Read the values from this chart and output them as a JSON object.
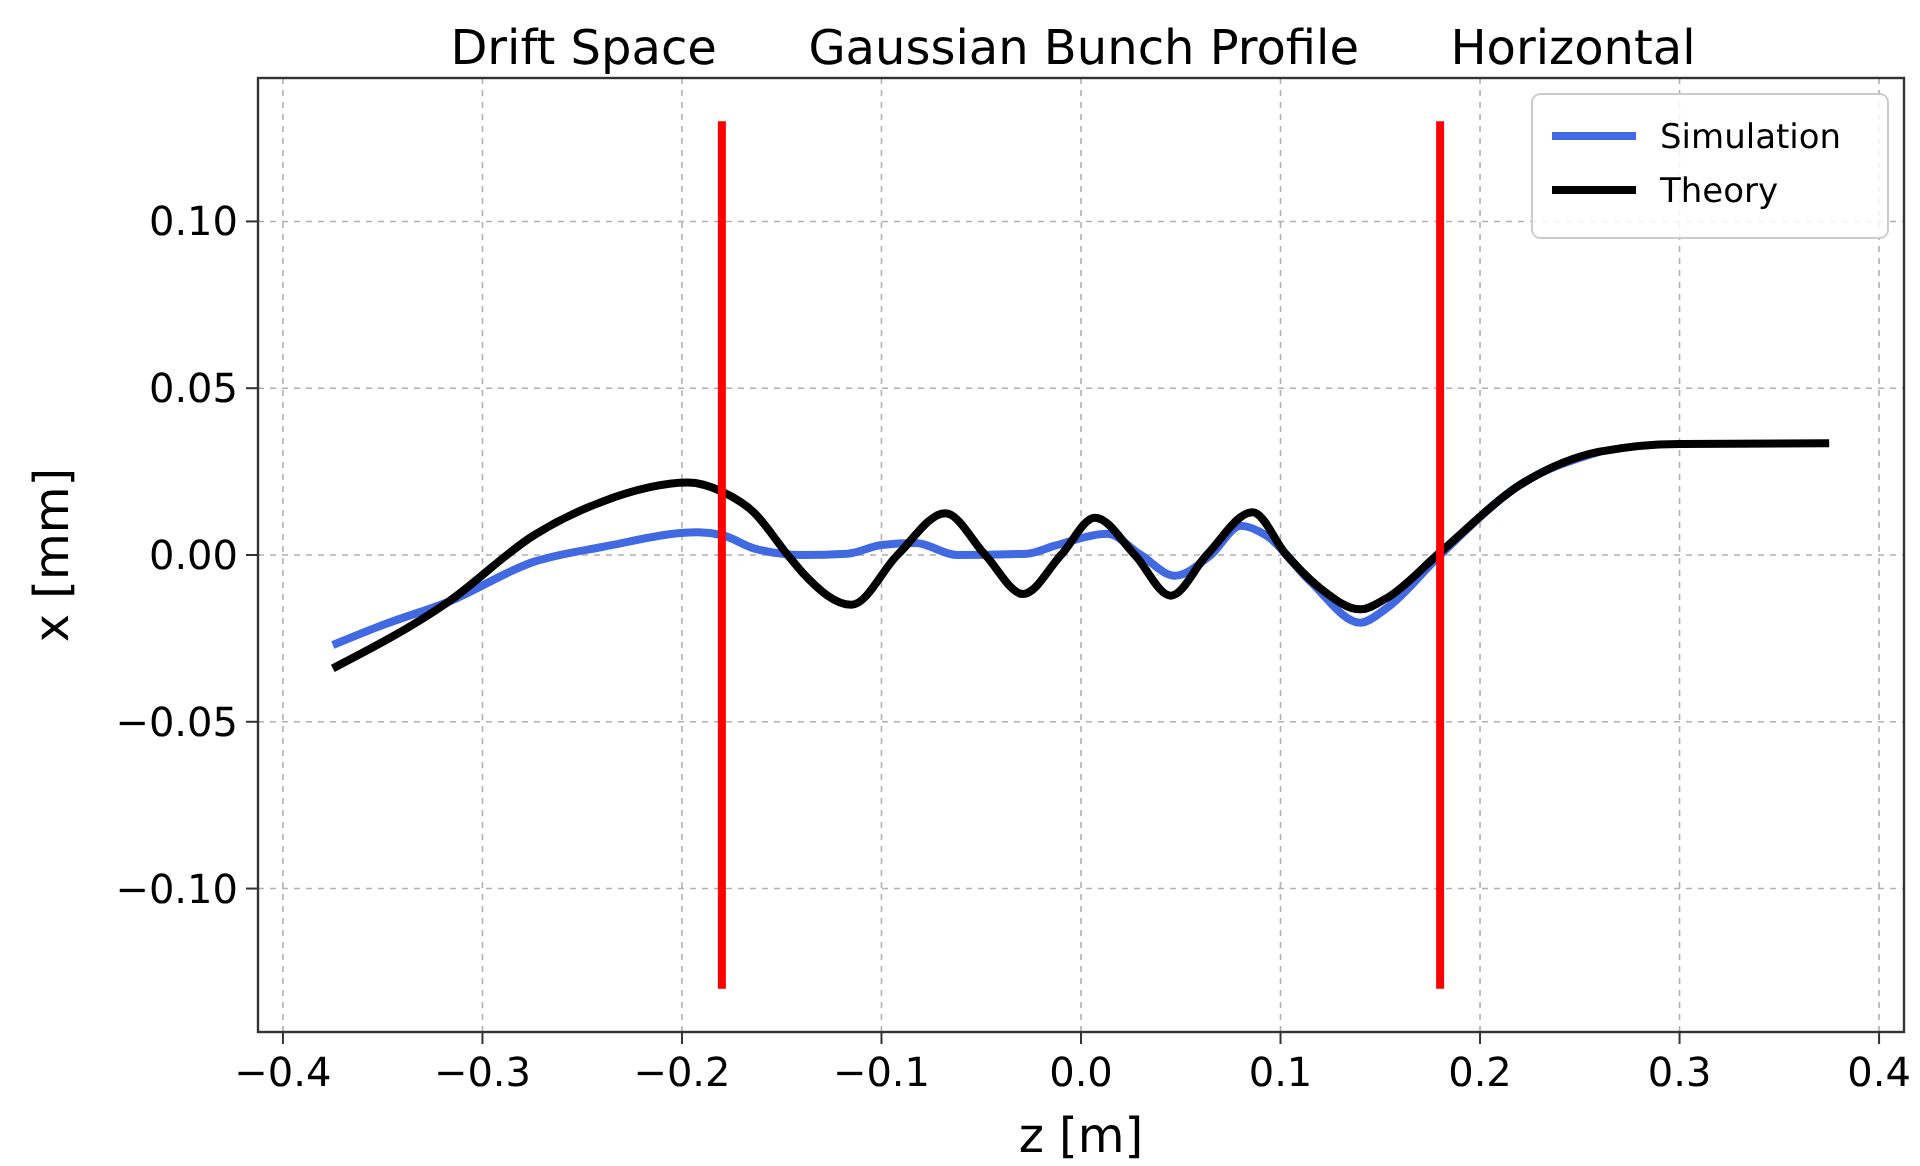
{
  "chart_data": {
    "type": "line",
    "title": "Drift Space      Gaussian Bunch Profile      Horizontal",
    "xlabel": "z [m]",
    "ylabel": "x [mm]",
    "xlim": [
      -0.4125,
      0.4125
    ],
    "ylim": [
      -0.143,
      0.143
    ],
    "xticks": [
      {
        "value": -0.4,
        "label": "−0.4"
      },
      {
        "value": -0.3,
        "label": "−0.3"
      },
      {
        "value": -0.2,
        "label": "−0.2"
      },
      {
        "value": -0.1,
        "label": "−0.1"
      },
      {
        "value": 0,
        "label": "0.0"
      },
      {
        "value": 0.1,
        "label": "0.1"
      },
      {
        "value": 0.2,
        "label": "0.2"
      },
      {
        "value": 0.3,
        "label": "0.3"
      },
      {
        "value": 0.4,
        "label": "0.4"
      }
    ],
    "yticks": [
      {
        "value": -0.1,
        "label": "−0.10"
      },
      {
        "value": -0.05,
        "label": "−0.05"
      },
      {
        "value": 0,
        "label": "0.00"
      },
      {
        "value": 0.05,
        "label": "0.05"
      },
      {
        "value": 0.1,
        "label": "0.10"
      }
    ],
    "grid": true,
    "legend": "top right",
    "line_style": "solid",
    "marker": "none",
    "series": [
      {
        "name": "Simulation",
        "color": "#4169e1",
        "x": [
          -0.375,
          -0.35,
          -0.317,
          -0.274,
          -0.24,
          -0.192,
          -0.18,
          -0.164,
          -0.14,
          -0.117,
          -0.1,
          -0.083,
          -0.062,
          -0.027,
          -0.013,
          0.013,
          0.03,
          0.047,
          0.065,
          0.08,
          0.093,
          0.115,
          0.14,
          0.153,
          0.18,
          0.22,
          0.26
        ],
        "values": [
          -0.027,
          -0.021,
          -0.014,
          -0.002,
          0.0024,
          0.0068,
          0.006,
          0.002,
          0,
          0.0004,
          0.003,
          0.0036,
          0,
          0.0004,
          0.0028,
          0.0064,
          0,
          -0.0062,
          0,
          0.0088,
          0.0058,
          -0.008,
          -0.0203,
          -0.016,
          0,
          0.021,
          0.031
        ]
      },
      {
        "name": "Theory",
        "color": "#000000",
        "x": [
          -0.375,
          -0.317,
          -0.274,
          -0.24,
          -0.197,
          -0.18,
          -0.164,
          -0.147,
          -0.14,
          -0.115,
          -0.092,
          -0.068,
          -0.048,
          -0.029,
          -0.01,
          0.007,
          0.027,
          0.045,
          0.063,
          0.086,
          0.103,
          0.12,
          0.14,
          0.153,
          0.18,
          0.22,
          0.26,
          0.3,
          0.375
        ],
        "values": [
          -0.034,
          -0.014,
          0.006,
          0.016,
          0.0217,
          0.019,
          0.0128,
          0,
          -0.005,
          -0.0149,
          0,
          0.0125,
          0,
          -0.0117,
          0,
          0.0112,
          0,
          -0.0122,
          0,
          0.0128,
          0,
          -0.01,
          -0.0163,
          -0.013,
          0.0008,
          0.021,
          0.031,
          0.0333,
          0.0335
        ]
      },
      {
        "color": "#ff0000",
        "x": [
          -0.18,
          -0.18
        ],
        "values": [
          -0.13,
          0.13
        ]
      },
      {
        "color": "#ff0000",
        "x": [
          0.18,
          0.18
        ],
        "values": [
          -0.13,
          0.13
        ]
      }
    ]
  }
}
